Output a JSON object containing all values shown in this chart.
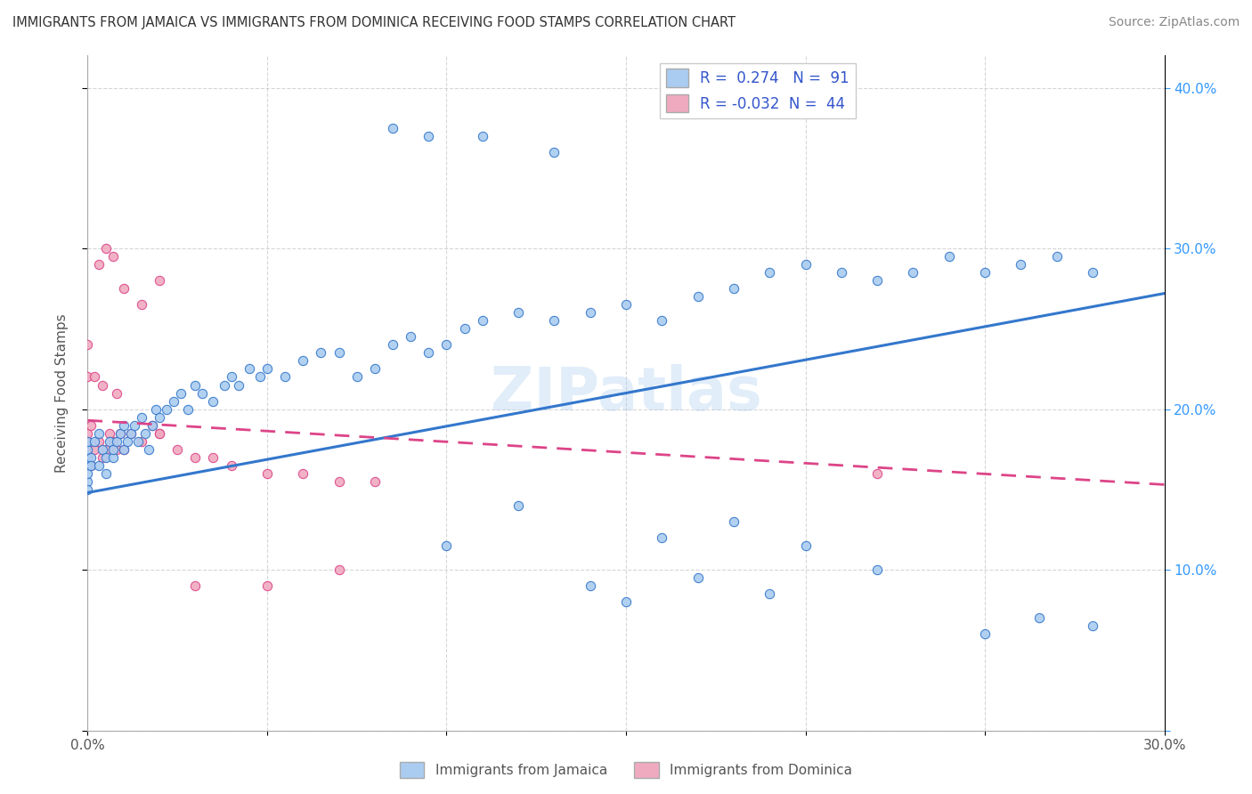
{
  "title": "IMMIGRANTS FROM JAMAICA VS IMMIGRANTS FROM DOMINICA RECEIVING FOOD STAMPS CORRELATION CHART",
  "source": "Source: ZipAtlas.com",
  "ylabel": "Receiving Food Stamps",
  "xlim": [
    0.0,
    0.3
  ],
  "ylim": [
    0.0,
    0.42
  ],
  "R_jamaica": 0.274,
  "N_jamaica": 91,
  "R_dominica": -0.032,
  "N_dominica": 44,
  "jamaica_color": "#aaccf0",
  "dominica_color": "#f0aac0",
  "jamaica_line_color": "#3377cc",
  "dominica_line_color": "#dd4488",
  "watermark": "ZIPatlas",
  "jamaica_line_x0": 0.0,
  "jamaica_line_y0": 0.148,
  "jamaica_line_x1": 0.3,
  "jamaica_line_y1": 0.272,
  "dominica_line_x0": 0.0,
  "dominica_line_y0": 0.193,
  "dominica_line_x1": 0.3,
  "dominica_line_y1": 0.153,
  "jamaica_x": [
    0.0,
    0.0,
    0.0,
    0.0,
    0.0,
    0.0,
    0.0,
    0.001,
    0.001,
    0.002,
    0.003,
    0.003,
    0.004,
    0.005,
    0.005,
    0.006,
    0.007,
    0.007,
    0.008,
    0.009,
    0.01,
    0.01,
    0.011,
    0.012,
    0.013,
    0.014,
    0.015,
    0.016,
    0.017,
    0.018,
    0.019,
    0.02,
    0.022,
    0.024,
    0.026,
    0.028,
    0.03,
    0.032,
    0.035,
    0.038,
    0.04,
    0.042,
    0.045,
    0.048,
    0.05,
    0.055,
    0.06,
    0.065,
    0.07,
    0.075,
    0.08,
    0.085,
    0.09,
    0.095,
    0.1,
    0.105,
    0.11,
    0.12,
    0.13,
    0.14,
    0.15,
    0.16,
    0.17,
    0.18,
    0.19,
    0.2,
    0.21,
    0.22,
    0.23,
    0.24,
    0.25,
    0.26,
    0.27,
    0.28,
    0.1,
    0.12,
    0.14,
    0.16,
    0.18,
    0.2,
    0.22,
    0.15,
    0.17,
    0.19,
    0.085,
    0.095,
    0.11,
    0.13,
    0.25,
    0.265,
    0.28
  ],
  "jamaica_y": [
    0.165,
    0.17,
    0.175,
    0.155,
    0.16,
    0.15,
    0.18,
    0.17,
    0.165,
    0.18,
    0.165,
    0.185,
    0.175,
    0.16,
    0.17,
    0.18,
    0.17,
    0.175,
    0.18,
    0.185,
    0.175,
    0.19,
    0.18,
    0.185,
    0.19,
    0.18,
    0.195,
    0.185,
    0.175,
    0.19,
    0.2,
    0.195,
    0.2,
    0.205,
    0.21,
    0.2,
    0.215,
    0.21,
    0.205,
    0.215,
    0.22,
    0.215,
    0.225,
    0.22,
    0.225,
    0.22,
    0.23,
    0.235,
    0.235,
    0.22,
    0.225,
    0.24,
    0.245,
    0.235,
    0.24,
    0.25,
    0.255,
    0.26,
    0.255,
    0.26,
    0.265,
    0.255,
    0.27,
    0.275,
    0.285,
    0.29,
    0.285,
    0.28,
    0.285,
    0.295,
    0.285,
    0.29,
    0.295,
    0.285,
    0.115,
    0.14,
    0.09,
    0.12,
    0.13,
    0.115,
    0.1,
    0.08,
    0.095,
    0.085,
    0.375,
    0.37,
    0.37,
    0.36,
    0.06,
    0.07,
    0.065
  ],
  "dominica_x": [
    0.0,
    0.0,
    0.0,
    0.0,
    0.0,
    0.001,
    0.001,
    0.002,
    0.003,
    0.004,
    0.005,
    0.006,
    0.007,
    0.008,
    0.009,
    0.01,
    0.012,
    0.015,
    0.018,
    0.02,
    0.025,
    0.03,
    0.035,
    0.04,
    0.05,
    0.06,
    0.07,
    0.08,
    0.003,
    0.005,
    0.007,
    0.01,
    0.015,
    0.02,
    0.03,
    0.05,
    0.07,
    0.0,
    0.0,
    0.002,
    0.004,
    0.008,
    0.02,
    0.22
  ],
  "dominica_y": [
    0.165,
    0.18,
    0.17,
    0.175,
    0.185,
    0.19,
    0.165,
    0.175,
    0.18,
    0.17,
    0.175,
    0.185,
    0.18,
    0.175,
    0.185,
    0.175,
    0.185,
    0.18,
    0.19,
    0.185,
    0.175,
    0.17,
    0.17,
    0.165,
    0.16,
    0.16,
    0.155,
    0.155,
    0.29,
    0.3,
    0.295,
    0.275,
    0.265,
    0.28,
    0.09,
    0.09,
    0.1,
    0.22,
    0.24,
    0.22,
    0.215,
    0.21,
    0.185,
    0.16
  ]
}
